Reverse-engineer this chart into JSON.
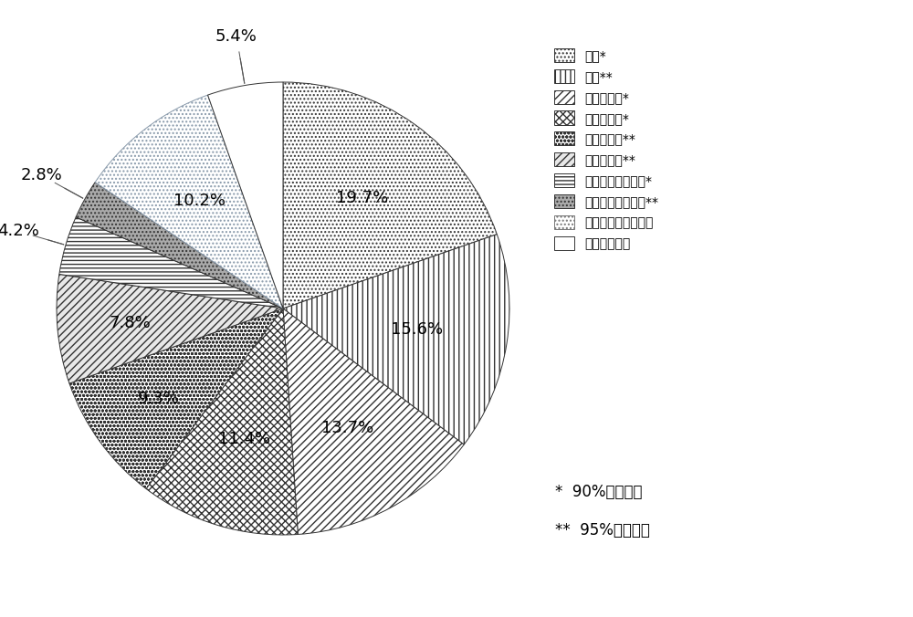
{
  "slices": [
    {
      "label": "农田*",
      "pct": 19.7,
      "hatch": "....",
      "facecolor": "#ffffff",
      "edgecolor": "#333333"
    },
    {
      "label": "农田**",
      "pct": 15.6,
      "hatch": "|||",
      "facecolor": "#ffffff",
      "edgecolor": "#333333"
    },
    {
      "label": "中覆盖草地*",
      "pct": 13.7,
      "hatch": "////",
      "facecolor": "#ffffff",
      "edgecolor": "#333333"
    },
    {
      "label": "低覆盖草地*",
      "pct": 11.4,
      "hatch": "xxxx",
      "facecolor": "#ffffff",
      "edgecolor": "#333333"
    },
    {
      "label": "中覆盖草地**",
      "pct": 9.3,
      "hatch": "oooo",
      "facecolor": "#ffffff",
      "edgecolor": "#333333"
    },
    {
      "label": "低覆盖草地**",
      "pct": 7.8,
      "hatch": "////",
      "facecolor": "#e0e0e0",
      "edgecolor": "#333333"
    },
    {
      "label": "沙地、戈壁与裸地*",
      "pct": 4.2,
      "hatch": "----",
      "facecolor": "#ffffff",
      "edgecolor": "#333333"
    },
    {
      "label": "沙地、戈壁与裸地**",
      "pct": 2.8,
      "hatch": "....",
      "facecolor": "#999999",
      "edgecolor": "#333333"
    },
    {
      "label": "其他未变化土地类型",
      "pct": 10.2,
      "hatch": "....",
      "facecolor": "#ffffff",
      "edgecolor": "#777777"
    },
    {
      "label": "土地利用变化",
      "pct": 5.4,
      "hatch": "",
      "facecolor": "#ffffff",
      "edgecolor": "#333333"
    }
  ],
  "legend_note1": "*  90%置信区间",
  "legend_note2": "**  95%置信区间",
  "label_fontsize": 13,
  "legend_fontsize": 13,
  "note_fontsize": 12
}
